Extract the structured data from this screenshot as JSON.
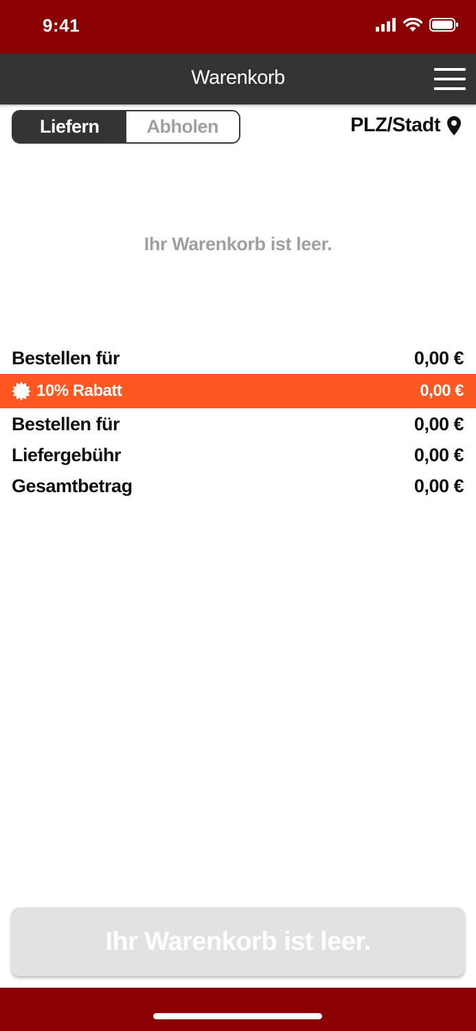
{
  "status_bar": {
    "time": "9:41",
    "icons": [
      "signal-icon",
      "wifi-icon",
      "battery-icon"
    ],
    "background": "#8b0000"
  },
  "header": {
    "title": "Warenkorb",
    "menu_icon": "hamburger-menu-icon",
    "background": "#333333"
  },
  "mode_toggle": {
    "options": [
      "Liefern",
      "Abholen"
    ],
    "selected": "Liefern"
  },
  "location": {
    "label": "PLZ/Stadt",
    "icon": "location-pin-icon"
  },
  "cart": {
    "empty_message": "Ihr Warenkorb ist leer."
  },
  "summary": {
    "subtotal": {
      "label": "Bestellen für",
      "value": "0,00 €"
    },
    "discount": {
      "label": "10% Rabatt",
      "value": "0,00 €",
      "icon": "discount-badge-icon",
      "color": "#ff5722"
    },
    "order_total": {
      "label": "Bestellen für",
      "value": "0,00 €"
    },
    "delivery_fee": {
      "label": "Liefergebühr",
      "value": "0,00 €"
    },
    "grand_total": {
      "label": "Gesamtbetrag",
      "value": "0,00 €"
    }
  },
  "checkout_button": {
    "label": "Ihr Warenkorb ist leer.",
    "disabled": true
  }
}
